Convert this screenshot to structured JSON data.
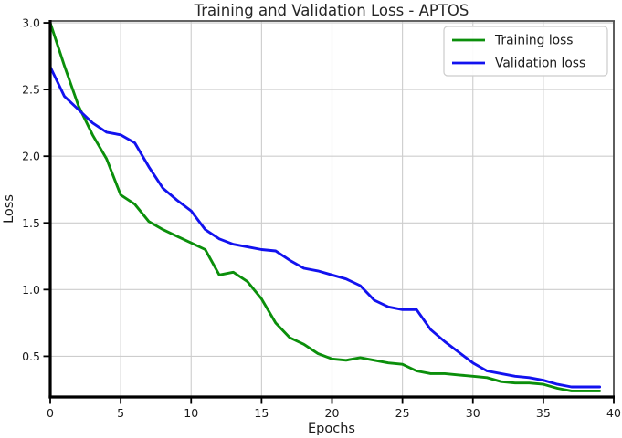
{
  "chart_data": {
    "type": "line",
    "title": "Training and Validation Loss - APTOS",
    "xlabel": "Epochs",
    "ylabel": "Loss",
    "xlim": [
      0,
      40
    ],
    "ylim": [
      0.195,
      3.014
    ],
    "xticks": [
      0,
      5,
      10,
      15,
      20,
      25,
      30,
      35,
      40
    ],
    "yticks": [
      0.5,
      1.0,
      1.5,
      2.0,
      2.5,
      3.0
    ],
    "grid": true,
    "grid_color": "#cdcdcd",
    "legend_position": "upper right",
    "x": [
      0,
      1,
      2,
      3,
      4,
      5,
      6,
      7,
      8,
      9,
      10,
      11,
      12,
      13,
      14,
      15,
      16,
      17,
      18,
      19,
      20,
      21,
      22,
      23,
      24,
      25,
      26,
      27,
      28,
      29,
      30,
      31,
      32,
      33,
      34,
      35,
      36,
      37,
      38,
      39
    ],
    "series": [
      {
        "name": "Training loss",
        "color": "#0b8f0b",
        "values": [
          3.0,
          2.68,
          2.38,
          2.16,
          1.98,
          1.71,
          1.64,
          1.51,
          1.45,
          1.4,
          1.35,
          1.3,
          1.11,
          1.13,
          1.06,
          0.93,
          0.75,
          0.64,
          0.59,
          0.52,
          0.48,
          0.47,
          0.49,
          0.47,
          0.45,
          0.44,
          0.39,
          0.37,
          0.37,
          0.36,
          0.35,
          0.34,
          0.31,
          0.3,
          0.3,
          0.29,
          0.26,
          0.24,
          0.24,
          0.24
        ]
      },
      {
        "name": "Validation loss",
        "color": "#1212ef",
        "values": [
          2.67,
          2.45,
          2.35,
          2.25,
          2.18,
          2.16,
          2.1,
          1.92,
          1.76,
          1.67,
          1.59,
          1.45,
          1.38,
          1.34,
          1.32,
          1.3,
          1.29,
          1.22,
          1.16,
          1.14,
          1.11,
          1.08,
          1.03,
          0.92,
          0.87,
          0.85,
          0.85,
          0.7,
          0.61,
          0.53,
          0.45,
          0.39,
          0.37,
          0.35,
          0.34,
          0.32,
          0.29,
          0.27,
          0.27,
          0.27
        ]
      }
    ]
  }
}
